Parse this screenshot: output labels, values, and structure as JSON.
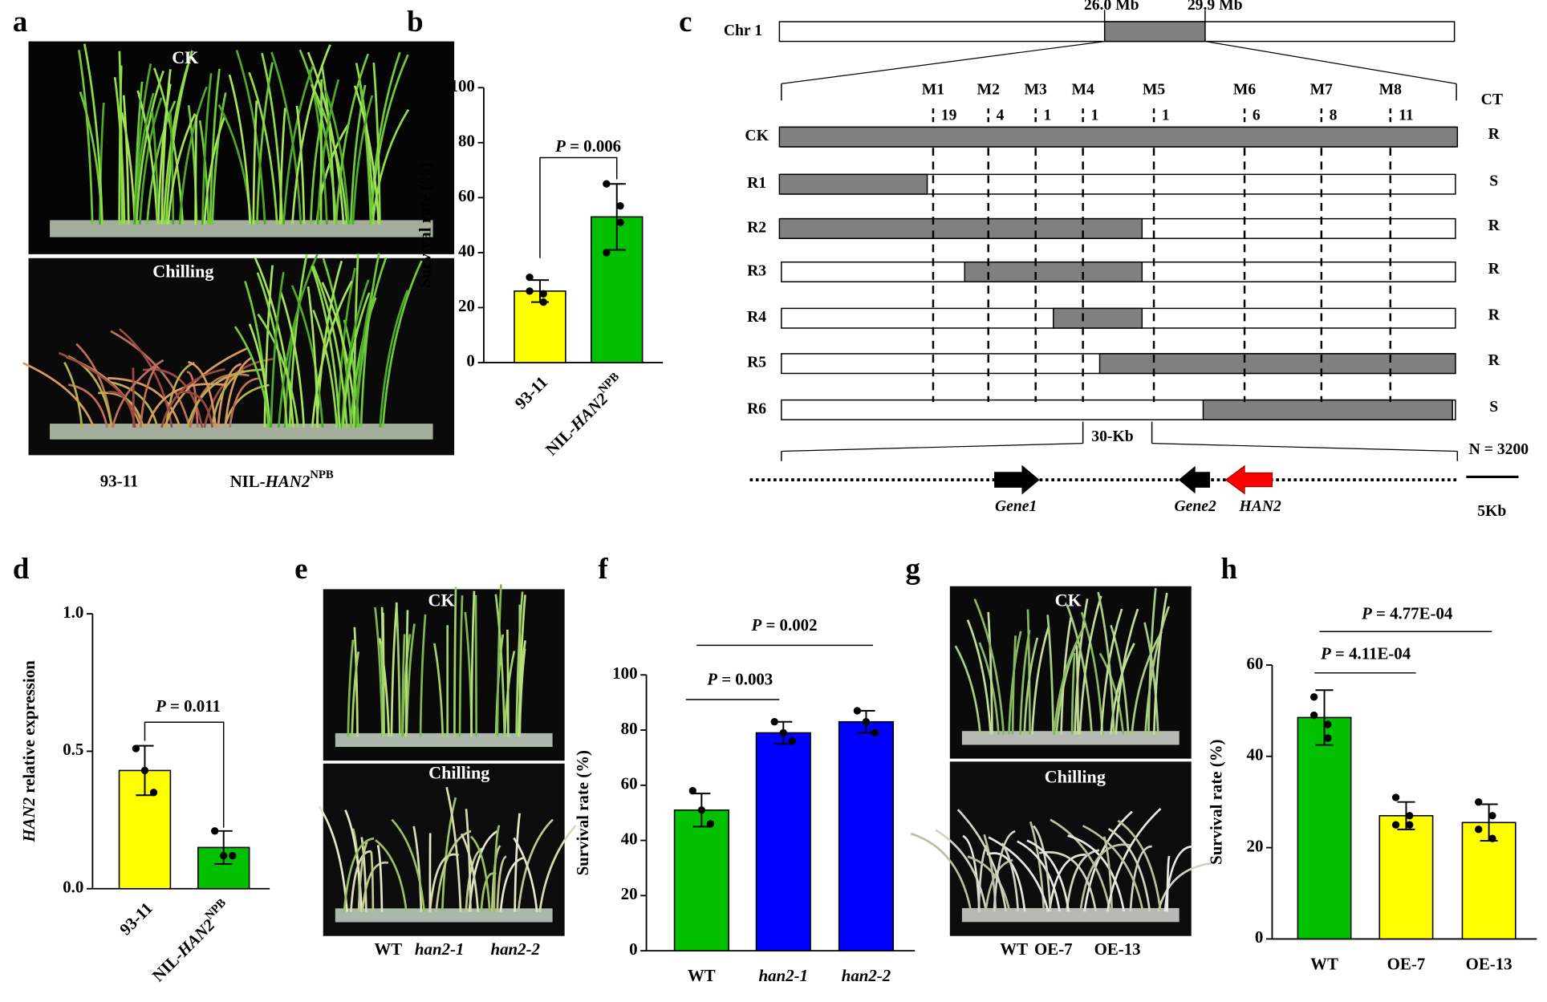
{
  "panel_labels": [
    "a",
    "b",
    "c",
    "d",
    "e",
    "f",
    "g",
    "h"
  ],
  "panel_a": {
    "photo_labels": [
      "CK",
      "Chilling"
    ],
    "genotypes": [
      "93-11",
      "NIL-HAN2NPB"
    ]
  },
  "panel_c": {
    "chromosome": "Chr 1",
    "interval": [
      "26.0 Mb",
      "29.9 Mb"
    ],
    "markers": [
      "M1",
      "M2",
      "M3",
      "M4",
      "M5",
      "M6",
      "M7",
      "M8"
    ],
    "recombinants": [
      19,
      4,
      1,
      1,
      1,
      6,
      8,
      11
    ],
    "ct_header": "CT",
    "rows": [
      {
        "name": "CK",
        "ct": "R"
      },
      {
        "name": "R1",
        "ct": "S"
      },
      {
        "name": "R2",
        "ct": "R"
      },
      {
        "name": "R3",
        "ct": "R"
      },
      {
        "name": "R4",
        "ct": "R"
      },
      {
        "name": "R5",
        "ct": "R"
      },
      {
        "name": "R6",
        "ct": "S"
      }
    ],
    "region": "30-Kb",
    "population": "N = 3200",
    "genes": [
      "Gene1",
      "Gene2",
      "HAN2"
    ],
    "scale": "5Kb"
  },
  "panel_e": {
    "photo_labels": [
      "CK",
      "Chilling"
    ],
    "genotypes": [
      "WT",
      "han2-1",
      "han2-2"
    ]
  },
  "panel_g": {
    "photo_labels": [
      "CK",
      "Chilling"
    ],
    "genotypes": [
      "WT",
      "OE-7",
      "OE-13"
    ]
  },
  "chart_data": [
    {
      "type": "bar",
      "ylabel": "Survival rate (%)",
      "categories": [
        "93-11",
        "NIL-HAN2NPB"
      ],
      "values": [
        26,
        53
      ],
      "errors": [
        4,
        12
      ],
      "points": [
        [
          31,
          25,
          22,
          26
        ],
        [
          65,
          57,
          51,
          40
        ]
      ],
      "colors": [
        "#ffff00",
        "#00c000"
      ],
      "ylim": [
        0,
        100
      ],
      "yticks": [
        0,
        20,
        40,
        60,
        80,
        100
      ],
      "annotations": [
        "P = 0.006"
      ]
    },
    {
      "type": "bar",
      "ylabel": "HAN2 relative expression",
      "categories": [
        "93-11",
        "NIL-HAN2NPB"
      ],
      "values": [
        0.43,
        0.15
      ],
      "errors": [
        0.09,
        0.06
      ],
      "points": [
        [
          0.51,
          0.43,
          0.35
        ],
        [
          0.21,
          0.12,
          0.12
        ]
      ],
      "colors": [
        "#ffff00",
        "#00c000"
      ],
      "ylim": [
        0,
        1
      ],
      "yticks": [
        {
          "value": 0,
          "label": "0.0"
        },
        {
          "value": 0.5,
          "label": "0.5"
        },
        {
          "value": 1,
          "label": "1.0"
        }
      ],
      "annotations": [
        "P = 0.011"
      ]
    },
    {
      "type": "bar",
      "ylabel": "Survival rate (%)",
      "categories": [
        "WT",
        "han2-1",
        "han2-2"
      ],
      "values": [
        51,
        79,
        83
      ],
      "errors": [
        6,
        4,
        4
      ],
      "points": [
        [
          58,
          51,
          46
        ],
        [
          83,
          79,
          76
        ],
        [
          87,
          83,
          79
        ]
      ],
      "colors": [
        "#00c000",
        "#0000ff",
        "#0000ff"
      ],
      "ylim": [
        0,
        100
      ],
      "yticks": [
        0,
        20,
        40,
        60,
        80,
        100
      ],
      "annotations": [
        "P = 0.003",
        "P = 0.002"
      ]
    },
    {
      "type": "bar",
      "ylabel": "Survival rate (%)",
      "categories": [
        "WT",
        "OE-7",
        "OE-13"
      ],
      "values": [
        48.5,
        27,
        25.5
      ],
      "errors": [
        6,
        3,
        4
      ],
      "points": [
        [
          53,
          47,
          44,
          49
        ],
        [
          31,
          27,
          25,
          25
        ],
        [
          30,
          27,
          22,
          24
        ]
      ],
      "colors": [
        "#00c000",
        "#ffff00",
        "#ffff00"
      ],
      "ylim": [
        0,
        60
      ],
      "yticks": [
        0,
        20,
        40,
        60
      ],
      "annotations": [
        "P = 4.11E-04",
        "P = 4.77E-04"
      ]
    }
  ]
}
